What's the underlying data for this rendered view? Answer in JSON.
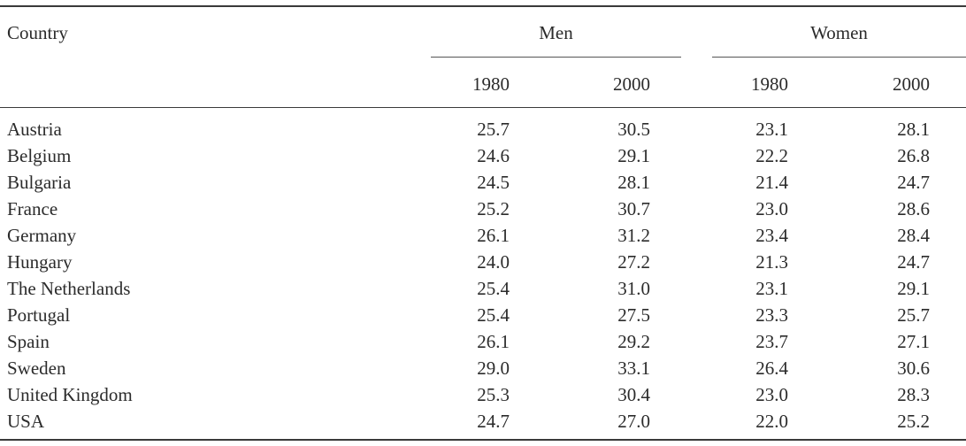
{
  "header": {
    "country": "Country",
    "men": "Men",
    "women": "Women",
    "years": [
      "1980",
      "2000",
      "1980",
      "2000"
    ]
  },
  "rows": [
    {
      "country": "Austria",
      "values": [
        "25.7",
        "30.5",
        "23.1",
        "28.1"
      ]
    },
    {
      "country": "Belgium",
      "values": [
        "24.6",
        "29.1",
        "22.2",
        "26.8"
      ]
    },
    {
      "country": "Bulgaria",
      "values": [
        "24.5",
        "28.1",
        "21.4",
        "24.7"
      ]
    },
    {
      "country": "France",
      "values": [
        "25.2",
        "30.7",
        "23.0",
        "28.6"
      ]
    },
    {
      "country": "Germany",
      "values": [
        "26.1",
        "31.2",
        "23.4",
        "28.4"
      ]
    },
    {
      "country": "Hungary",
      "values": [
        "24.0",
        "27.2",
        "21.3",
        "24.7"
      ]
    },
    {
      "country": "The Netherlands",
      "values": [
        "25.4",
        "31.0",
        "23.1",
        "29.1"
      ]
    },
    {
      "country": "Portugal",
      "values": [
        "25.4",
        "27.5",
        "23.3",
        "25.7"
      ]
    },
    {
      "country": "Spain",
      "values": [
        "26.1",
        "29.2",
        "23.7",
        "27.1"
      ]
    },
    {
      "country": "Sweden",
      "values": [
        "29.0",
        "33.1",
        "26.4",
        "30.6"
      ]
    },
    {
      "country": "United Kingdom",
      "values": [
        "25.3",
        "30.4",
        "23.0",
        "28.3"
      ]
    },
    {
      "country": "USA",
      "values": [
        "24.7",
        "27.0",
        "22.0",
        "25.2"
      ]
    }
  ]
}
